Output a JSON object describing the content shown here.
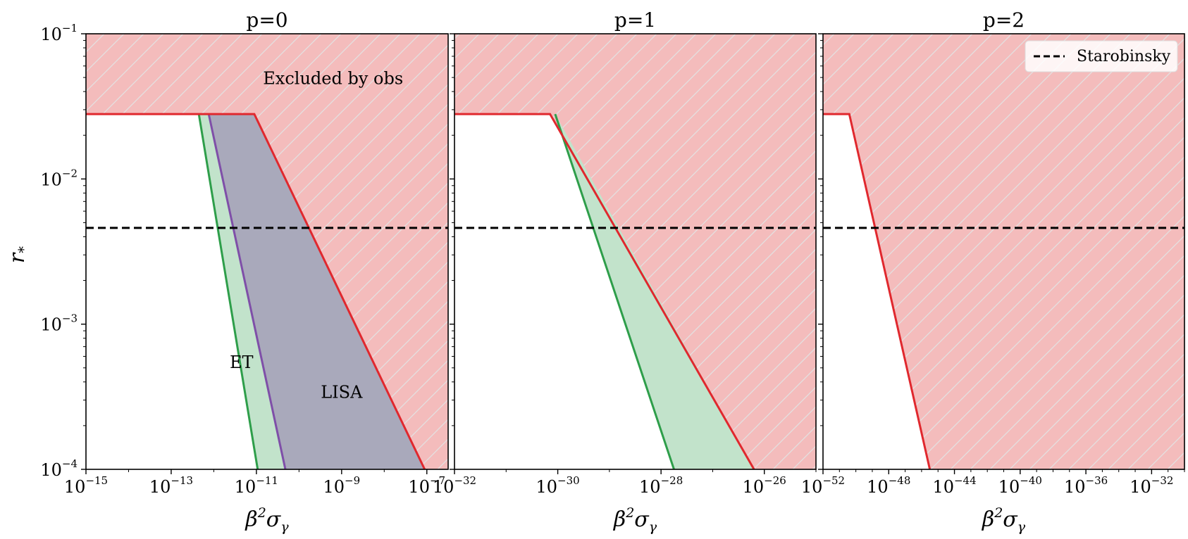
{
  "chart_data": {
    "type": "area",
    "ylabel": "r_*",
    "ylabel_main": "r",
    "ylabel_sub": "*",
    "ylim": [
      0.0001,
      0.1
    ],
    "yscale": "log",
    "ytick_exponents": [
      -1,
      -2,
      -3,
      -4
    ],
    "r_obs_limit": 0.028,
    "starobinsky_r": 0.0046,
    "colors": {
      "excluded_fill": "#f4bcbc",
      "excluded_line": "#e0282e",
      "hatch": "#dcdcdc",
      "et_fill": "#c2e3cb",
      "et_line": "#2e9e4a",
      "lisa_fill": "#a9a9bb",
      "lisa_line": "#7f4fa8",
      "starobinsky": "#000000"
    },
    "legend": {
      "label": "Starobinsky",
      "placement": "top-right of p=2 panel"
    },
    "panels": [
      {
        "title": "p=0",
        "xlabel_main": "β",
        "xlabel_sup": "2",
        "xlabel_sigma": "σ",
        "xlabel_sub": "γ",
        "xlim_exp": [
          -15,
          -6.5
        ],
        "xtick_base": "10",
        "xtick_exponents": [
          -15,
          -13,
          -11,
          -9,
          -7
        ],
        "annotations": [
          {
            "text": "Excluded by obs",
            "x_exp": -9.2,
            "r": 0.045
          },
          {
            "text": "ET",
            "x_exp": -11.35,
            "r": 0.0005
          },
          {
            "text": "LISA",
            "x_exp": -9.0,
            "r": 0.00031
          }
        ],
        "curves": {
          "excluded": [
            [
              -15,
              0.028
            ],
            [
              -11.05,
              0.028
            ],
            [
              -7.05,
              0.0001
            ]
          ],
          "et": [
            [
              -12.35,
              0.028
            ],
            [
              -10.97,
              0.0001
            ]
          ],
          "lisa": [
            [
              -12.12,
              0.028
            ],
            [
              -10.32,
              0.0001
            ]
          ]
        }
      },
      {
        "title": "p=1",
        "xlabel_main": "β",
        "xlabel_sup": "2",
        "xlabel_sigma": "σ",
        "xlabel_sub": "γ",
        "xlim_exp": [
          -32,
          -25
        ],
        "xtick_base": "10",
        "xtick_exponents": [
          -32,
          -30,
          -28,
          -26
        ],
        "annotations": [],
        "curves": {
          "excluded": [
            [
              -32,
              0.028
            ],
            [
              -30.15,
              0.028
            ],
            [
              -26.2,
              0.0001
            ]
          ],
          "et": [
            [
              -30.05,
              0.028
            ],
            [
              -27.75,
              0.0001
            ]
          ]
        }
      },
      {
        "title": "p=2",
        "xlabel_main": "β",
        "xlabel_sup": "2",
        "xlabel_sigma": "σ",
        "xlabel_sub": "γ",
        "xlim_exp": [
          -52,
          -30
        ],
        "xtick_base": "10",
        "xtick_exponents": [
          -52,
          -48,
          -44,
          -40,
          -36,
          -32
        ],
        "annotations": [],
        "curves": {
          "excluded": [
            [
              -52,
              0.028
            ],
            [
              -50.4,
              0.028
            ],
            [
              -45.5,
              0.0001
            ]
          ]
        }
      }
    ]
  }
}
